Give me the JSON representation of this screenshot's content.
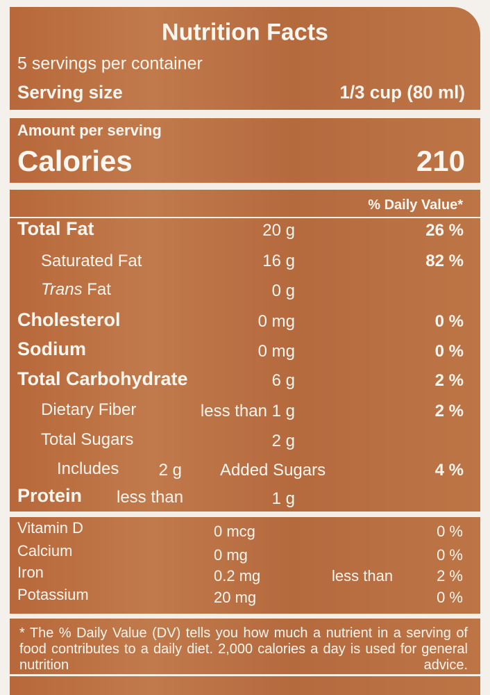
{
  "header": {
    "title": "Nutrition Facts",
    "servings": "5 servings per container",
    "serving_size_label": "Serving size",
    "serving_size": "1/3 cup (80 ml)"
  },
  "calories": {
    "amount_label": "Amount per serving",
    "label": "Calories",
    "value": 210
  },
  "dv_header": "% Daily Value*",
  "nutrients": [
    {
      "name": "Total Fat",
      "amount": "20 g",
      "dv": "26 %"
    },
    {
      "name": "Saturated Fat",
      "amount": "16 g",
      "dv": "82 %"
    },
    {
      "name_italic": "Trans",
      "name": "Fat",
      "amount": "0 g"
    },
    {
      "name": "Cholesterol",
      "amount": "0 mg",
      "dv": "0 %"
    },
    {
      "name": "Sodium",
      "amount": "0 mg",
      "dv": "0 %"
    },
    {
      "name": "Total Carbohydrate",
      "amount": "6 g",
      "dv": "2 %"
    },
    {
      "name": "Dietary Fiber",
      "amount": "less than 1 g",
      "dv": "2 %"
    },
    {
      "name": "Total Sugars",
      "amount": "2 g"
    },
    {
      "name": "Includes",
      "amount": "2 g",
      "name_after": "Added Sugars",
      "dv": "4 %"
    },
    {
      "name": "Protein",
      "qualifier": "less than",
      "amount": "1 g"
    }
  ],
  "vitamins": [
    {
      "name": "Vitamin D",
      "amount": "0 mcg",
      "dv": "0 %"
    },
    {
      "name": "Calcium",
      "amount": "0 mg",
      "dv": "0 %"
    },
    {
      "name": "Iron",
      "amount": "0.2 mg",
      "qualifier": "less than",
      "dv": "2 %"
    },
    {
      "name": "Potassium",
      "amount": "20 mg",
      "dv": "0 %"
    }
  ],
  "footnote": "* The % Daily Value (DV) tells you how much a nutrient in a serving of food contributes to a daily diet. 2,000 calories a day is used for general nutrition advice."
}
